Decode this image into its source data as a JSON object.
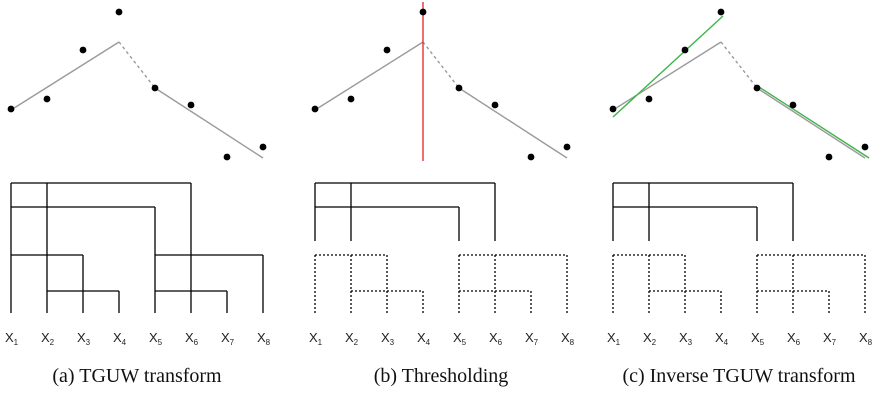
{
  "panels": [
    {
      "caption": "(a) TGUW transform",
      "tree_style": "solid",
      "threshold_line": false,
      "fit_lines": false
    },
    {
      "caption": "(b) Thresholding",
      "tree_style": "dotted",
      "threshold_line": true,
      "fit_lines": false
    },
    {
      "caption": "(c) Inverse TGUW transform",
      "tree_style": "dotted",
      "threshold_line": false,
      "fit_lines": true
    }
  ],
  "x_labels": [
    {
      "base": "X",
      "sub": "1"
    },
    {
      "base": "X",
      "sub": "2"
    },
    {
      "base": "X",
      "sub": "3"
    },
    {
      "base": "X",
      "sub": "4"
    },
    {
      "base": "X",
      "sub": "5"
    },
    {
      "base": "X",
      "sub": "6"
    },
    {
      "base": "X",
      "sub": "7"
    },
    {
      "base": "X",
      "sub": "8"
    }
  ],
  "colors": {
    "points": "#000000",
    "fit": "#9a9a9a",
    "threshold": "#e8303a",
    "reconstruction": "#3cb54a",
    "tree": "#000000"
  }
}
